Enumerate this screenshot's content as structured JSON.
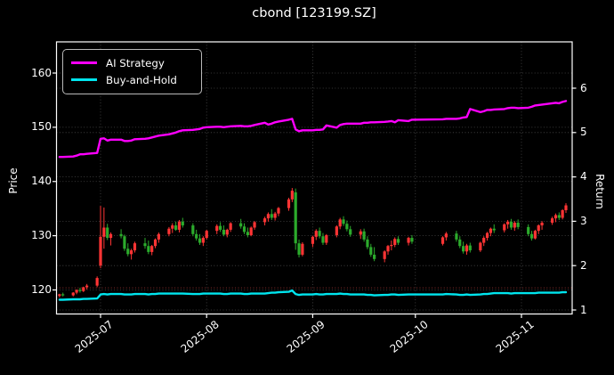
{
  "title": "cbond [123199.SZ]",
  "colors": {
    "background": "#000000",
    "text": "#ffffff",
    "grid": "#4a4a4a",
    "spine": "#ffffff",
    "ai_strategy": "#ff00ff",
    "buy_and_hold": "#00e5ee",
    "candle_up": "#ff3434",
    "candle_down": "#2cab2c",
    "reference_line": "#8f3030"
  },
  "legend": {
    "items": [
      {
        "label": "AI Strategy",
        "color": "#ff00ff"
      },
      {
        "label": "Buy-and-Hold",
        "color": "#00e5ee"
      }
    ]
  },
  "axes": {
    "x": {
      "tick_labels": [
        "2025-07",
        "2025-08",
        "2025-09",
        "2025-10",
        "2025-11"
      ],
      "tick_dates": [
        "2025-07-01",
        "2025-08-01",
        "2025-09-01",
        "2025-10-01",
        "2025-11-01"
      ]
    },
    "y_left": {
      "label": "Price",
      "ticks": [
        120,
        130,
        140,
        150,
        160
      ],
      "range": [
        115.6,
        165.8
      ]
    },
    "y_right": {
      "label": "Return",
      "ticks": [
        1,
        2,
        3,
        4,
        5,
        6
      ],
      "range": [
        0.91,
        7.05
      ]
    }
  },
  "chart_data": {
    "type": "candlestick-with-lines",
    "title": "cbond [123199.SZ]",
    "xlabel": "",
    "ylabel_left": "Price",
    "ylabel_right": "Return",
    "grid": true,
    "legend_position": "upper-left",
    "reference_line_price": 120.4,
    "candles_ohlc": [
      [
        "2025-06-19",
        118.9,
        119.3,
        118.6,
        119.2
      ],
      [
        "2025-06-20",
        119.2,
        119.5,
        118.8,
        119.0
      ],
      [
        "2025-06-23",
        119.0,
        119.6,
        118.8,
        119.5
      ],
      [
        "2025-06-24",
        119.5,
        120.1,
        119.2,
        120.0
      ],
      [
        "2025-06-25",
        120.0,
        120.4,
        119.5,
        119.8
      ],
      [
        "2025-06-26",
        119.8,
        120.6,
        119.6,
        120.5
      ],
      [
        "2025-06-27",
        120.5,
        121.1,
        120.1,
        120.8
      ],
      [
        "2025-06-30",
        120.8,
        122.5,
        120.5,
        122.2
      ],
      [
        "2025-07-01",
        124.5,
        135.5,
        124.0,
        129.8
      ],
      [
        "2025-07-02",
        129.8,
        135.2,
        127.6,
        131.5
      ],
      [
        "2025-07-03",
        131.5,
        132.2,
        129.2,
        129.6
      ],
      [
        "2025-07-04",
        129.6,
        130.6,
        128.2,
        130.3
      ],
      [
        "2025-07-07",
        130.3,
        131.2,
        129.5,
        129.9
      ],
      [
        "2025-07-08",
        129.9,
        130.2,
        127.2,
        127.6
      ],
      [
        "2025-07-09",
        127.6,
        128.6,
        126.2,
        126.6
      ],
      [
        "2025-07-10",
        126.6,
        127.6,
        125.6,
        127.3
      ],
      [
        "2025-07-11",
        127.3,
        128.9,
        126.9,
        128.6
      ],
      [
        "2025-07-14",
        128.6,
        129.6,
        127.6,
        128.1
      ],
      [
        "2025-07-15",
        128.1,
        129.1,
        126.6,
        127.0
      ],
      [
        "2025-07-16",
        127.0,
        128.3,
        126.4,
        128.1
      ],
      [
        "2025-07-17",
        128.1,
        129.5,
        127.7,
        129.3
      ],
      [
        "2025-07-18",
        129.3,
        130.6,
        128.7,
        130.3
      ],
      [
        "2025-07-21",
        130.3,
        131.6,
        129.9,
        131.3
      ],
      [
        "2025-07-22",
        131.3,
        132.3,
        130.5,
        131.9
      ],
      [
        "2025-07-23",
        131.9,
        132.6,
        130.9,
        131.1
      ],
      [
        "2025-07-24",
        131.1,
        132.9,
        130.6,
        132.6
      ],
      [
        "2025-07-25",
        132.6,
        133.3,
        131.5,
        131.9
      ],
      [
        "2025-07-28",
        131.9,
        132.3,
        129.9,
        130.3
      ],
      [
        "2025-07-29",
        130.3,
        131.1,
        129.1,
        129.5
      ],
      [
        "2025-07-30",
        129.5,
        130.3,
        128.3,
        128.7
      ],
      [
        "2025-07-31",
        128.7,
        129.9,
        128.1,
        129.6
      ],
      [
        "2025-08-01",
        129.6,
        131.1,
        129.3,
        130.9
      ],
      [
        "2025-08-04",
        130.9,
        132.1,
        130.3,
        131.8
      ],
      [
        "2025-08-05",
        131.8,
        132.5,
        130.7,
        131.1
      ],
      [
        "2025-08-06",
        131.1,
        131.9,
        129.9,
        130.2
      ],
      [
        "2025-08-07",
        130.2,
        131.3,
        129.7,
        131.1
      ],
      [
        "2025-08-08",
        131.1,
        132.5,
        130.7,
        132.3
      ],
      [
        "2025-08-11",
        132.3,
        133.1,
        131.3,
        131.7
      ],
      [
        "2025-08-12",
        131.7,
        132.3,
        130.3,
        130.7
      ],
      [
        "2025-08-13",
        130.7,
        131.5,
        129.7,
        130.1
      ],
      [
        "2025-08-14",
        130.1,
        131.7,
        129.9,
        131.5
      ],
      [
        "2025-08-15",
        131.5,
        132.7,
        131.1,
        132.5
      ],
      [
        "2025-08-18",
        132.5,
        133.5,
        131.9,
        133.2
      ],
      [
        "2025-08-19",
        133.2,
        134.3,
        132.6,
        134.0
      ],
      [
        "2025-08-20",
        134.0,
        134.9,
        132.9,
        133.3
      ],
      [
        "2025-08-21",
        133.3,
        134.4,
        132.8,
        134.1
      ],
      [
        "2025-08-22",
        134.1,
        135.3,
        133.6,
        135.1
      ],
      [
        "2025-08-25",
        135.1,
        137.0,
        134.6,
        136.7
      ],
      [
        "2025-08-26",
        136.7,
        138.8,
        136.2,
        138.3
      ],
      [
        "2025-08-27",
        138.0,
        138.7,
        127.4,
        128.6
      ],
      [
        "2025-08-28",
        128.6,
        129.3,
        126.0,
        126.5
      ],
      [
        "2025-08-29",
        126.5,
        128.8,
        126.2,
        128.5
      ],
      [
        "2025-09-01",
        128.5,
        130.0,
        127.9,
        129.8
      ],
      [
        "2025-09-02",
        129.8,
        131.2,
        129.2,
        130.9
      ],
      [
        "2025-09-03",
        130.9,
        131.5,
        129.5,
        129.9
      ],
      [
        "2025-09-04",
        129.9,
        130.5,
        128.3,
        128.7
      ],
      [
        "2025-09-05",
        128.7,
        130.3,
        128.3,
        130.1
      ],
      [
        "2025-09-08",
        130.1,
        131.9,
        129.7,
        131.7
      ],
      [
        "2025-09-09",
        131.7,
        133.3,
        131.2,
        133.0
      ],
      [
        "2025-09-10",
        133.0,
        133.6,
        131.8,
        132.2
      ],
      [
        "2025-09-11",
        132.2,
        132.8,
        130.8,
        131.2
      ],
      [
        "2025-09-12",
        131.2,
        131.8,
        129.8,
        130.2
      ],
      [
        "2025-09-15",
        130.2,
        131.2,
        129.4,
        130.8
      ],
      [
        "2025-09-16",
        130.8,
        131.3,
        128.9,
        129.3
      ],
      [
        "2025-09-17",
        129.3,
        129.9,
        127.5,
        127.9
      ],
      [
        "2025-09-18",
        127.9,
        128.5,
        126.1,
        126.5
      ],
      [
        "2025-09-19",
        126.5,
        127.9,
        125.3,
        125.7
      ],
      [
        "2025-09-22",
        125.7,
        127.3,
        125.1,
        127.1
      ],
      [
        "2025-09-23",
        127.1,
        128.3,
        126.5,
        128.1
      ],
      [
        "2025-09-24",
        128.1,
        129.1,
        127.3,
        128.3
      ],
      [
        "2025-09-25",
        128.3,
        129.7,
        127.9,
        129.4
      ],
      [
        "2025-09-26",
        129.4,
        129.9,
        128.3,
        128.7
      ],
      [
        "2025-09-29",
        128.7,
        129.8,
        128.2,
        129.6
      ],
      [
        "2025-09-30",
        129.6,
        130.1,
        128.5,
        128.9
      ],
      [
        "2025-10-09",
        128.5,
        129.9,
        128.2,
        129.7
      ],
      [
        "2025-10-10",
        129.7,
        130.7,
        129.1,
        130.4
      ],
      [
        "2025-10-13",
        130.4,
        130.9,
        128.9,
        129.3
      ],
      [
        "2025-10-14",
        129.3,
        129.9,
        127.7,
        128.1
      ],
      [
        "2025-10-15",
        128.1,
        128.9,
        126.7,
        127.1
      ],
      [
        "2025-10-16",
        127.1,
        128.5,
        126.5,
        128.2
      ],
      [
        "2025-10-17",
        128.2,
        128.7,
        126.9,
        127.3
      ],
      [
        "2025-10-20",
        127.3,
        128.9,
        127.0,
        128.7
      ],
      [
        "2025-10-21",
        128.7,
        129.9,
        128.1,
        129.6
      ],
      [
        "2025-10-22",
        129.6,
        130.7,
        129.1,
        130.5
      ],
      [
        "2025-10-23",
        130.5,
        131.5,
        129.9,
        131.3
      ],
      [
        "2025-10-24",
        131.3,
        132.1,
        130.5,
        131.0
      ],
      [
        "2025-10-27",
        131.0,
        132.3,
        130.6,
        132.1
      ],
      [
        "2025-10-28",
        132.1,
        132.9,
        131.3,
        132.6
      ],
      [
        "2025-10-29",
        132.6,
        133.1,
        131.1,
        131.5
      ],
      [
        "2025-10-30",
        131.5,
        132.7,
        130.9,
        132.4
      ],
      [
        "2025-10-31",
        132.4,
        133.0,
        131.2,
        131.6
      ],
      [
        "2025-11-03",
        131.6,
        132.1,
        129.9,
        130.3
      ],
      [
        "2025-11-04",
        130.3,
        130.9,
        129.1,
        129.5
      ],
      [
        "2025-11-05",
        129.5,
        131.1,
        129.3,
        130.9
      ],
      [
        "2025-11-06",
        130.9,
        132.1,
        130.3,
        131.9
      ],
      [
        "2025-11-07",
        131.9,
        132.7,
        131.1,
        132.4
      ],
      [
        "2025-11-10",
        132.4,
        133.5,
        132.0,
        133.2
      ],
      [
        "2025-11-11",
        133.2,
        134.1,
        132.5,
        133.8
      ],
      [
        "2025-11-12",
        133.8,
        134.3,
        132.9,
        133.3
      ],
      [
        "2025-11-13",
        133.3,
        134.9,
        133.0,
        134.7
      ],
      [
        "2025-11-14",
        134.7,
        136.0,
        134.2,
        135.6
      ]
    ],
    "series": [
      {
        "name": "AI Strategy",
        "axis": "return",
        "color": "#ff00ff",
        "values": [
          4.45,
          4.45,
          4.46,
          4.48,
          4.51,
          4.51,
          4.52,
          4.54,
          4.86,
          4.87,
          4.82,
          4.84,
          4.84,
          4.81,
          4.81,
          4.82,
          4.85,
          4.86,
          4.87,
          4.89,
          4.91,
          4.93,
          4.96,
          4.98,
          5.0,
          5.03,
          5.05,
          5.06,
          5.07,
          5.08,
          5.11,
          5.12,
          5.13,
          5.13,
          5.12,
          5.13,
          5.14,
          5.15,
          5.14,
          5.14,
          5.15,
          5.17,
          5.22,
          5.18,
          5.2,
          5.23,
          5.25,
          5.29,
          5.31,
          5.07,
          5.03,
          5.05,
          5.05,
          5.06,
          5.06,
          5.07,
          5.16,
          5.11,
          5.17,
          5.19,
          5.2,
          5.2,
          5.2,
          5.22,
          5.22,
          5.23,
          5.23,
          5.24,
          5.25,
          5.26,
          5.23,
          5.28,
          5.26,
          5.29,
          5.3,
          5.31,
          5.31,
          5.32,
          5.34,
          5.35,
          5.53,
          5.46,
          5.48,
          5.51,
          5.51,
          5.52,
          5.53,
          5.55,
          5.56,
          5.56,
          5.55,
          5.56,
          5.58,
          5.61,
          5.62,
          5.63,
          5.66,
          5.67,
          5.66,
          5.69,
          5.71
        ]
      },
      {
        "name": "Buy-and-Hold",
        "axis": "return",
        "color": "#00e5ee",
        "values": [
          1.23,
          1.23,
          1.24,
          1.24,
          1.24,
          1.25,
          1.25,
          1.26,
          1.35,
          1.36,
          1.35,
          1.36,
          1.36,
          1.35,
          1.35,
          1.35,
          1.36,
          1.36,
          1.35,
          1.36,
          1.36,
          1.37,
          1.37,
          1.37,
          1.37,
          1.37,
          1.37,
          1.36,
          1.36,
          1.36,
          1.37,
          1.37,
          1.37,
          1.37,
          1.36,
          1.36,
          1.37,
          1.37,
          1.36,
          1.36,
          1.37,
          1.37,
          1.37,
          1.38,
          1.39,
          1.39,
          1.4,
          1.41,
          1.44,
          1.36,
          1.34,
          1.35,
          1.35,
          1.36,
          1.35,
          1.35,
          1.36,
          1.36,
          1.37,
          1.36,
          1.36,
          1.35,
          1.35,
          1.35,
          1.34,
          1.34,
          1.33,
          1.34,
          1.34,
          1.35,
          1.35,
          1.34,
          1.35,
          1.35,
          1.35,
          1.36,
          1.35,
          1.34,
          1.34,
          1.35,
          1.34,
          1.35,
          1.36,
          1.36,
          1.37,
          1.38,
          1.38,
          1.38,
          1.37,
          1.38,
          1.38,
          1.38,
          1.38,
          1.38,
          1.39,
          1.39,
          1.39,
          1.39,
          1.39,
          1.4,
          1.4
        ]
      }
    ]
  }
}
